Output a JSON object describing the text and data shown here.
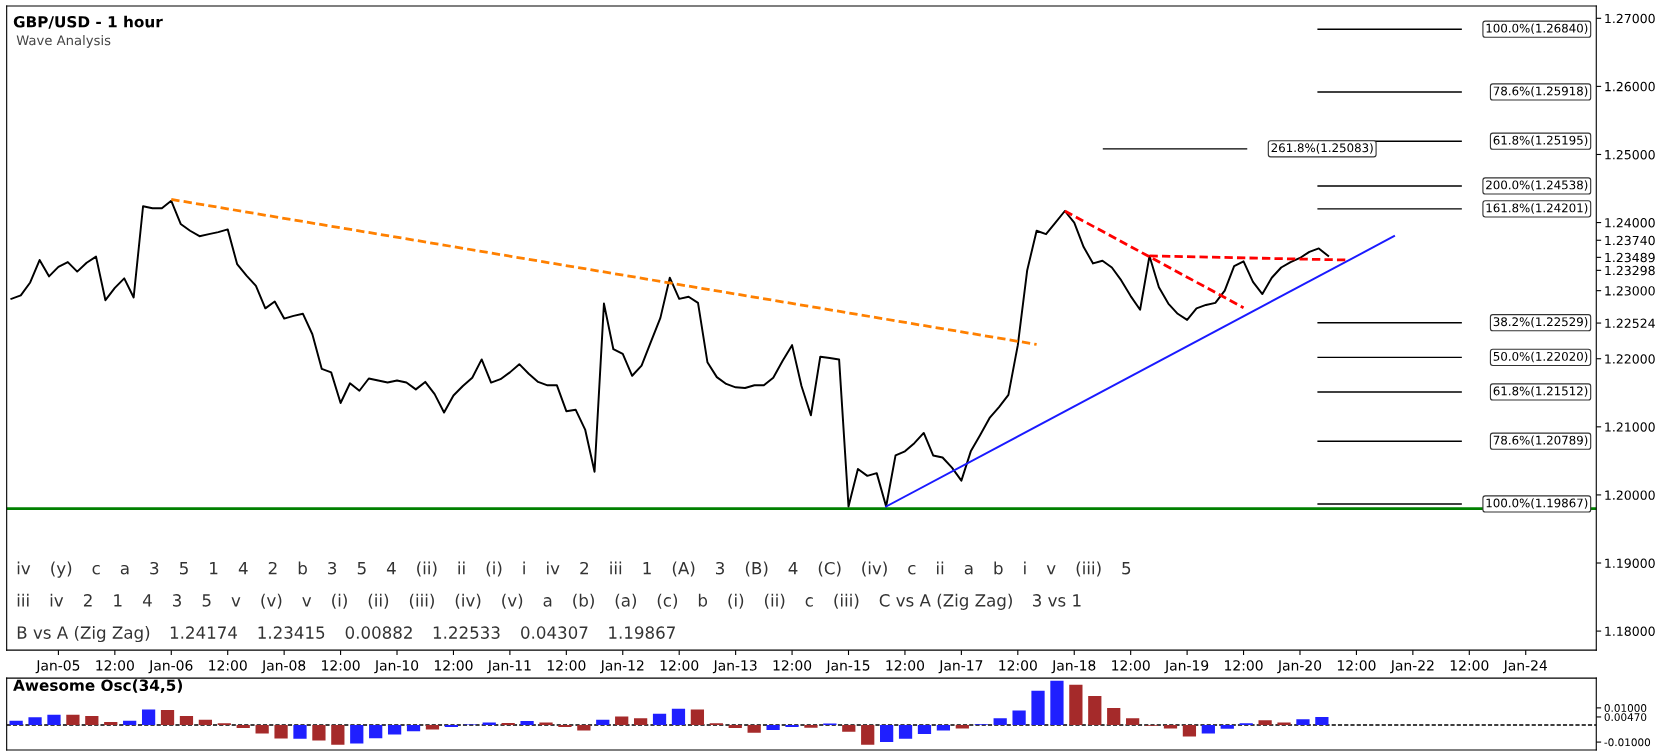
{
  "chart_data": [
    {
      "type": "line",
      "title": "GBP/USD - 1 hour",
      "subtitle": "Wave Analysis",
      "categories": [
        null,
        null,
        null,
        null,
        null,
        "Jan-05",
        null,
        null,
        null,
        null,
        null,
        "12:00",
        null,
        null,
        null,
        null,
        null,
        "Jan-06",
        null,
        null,
        null,
        null,
        null,
        "12:00",
        null,
        null,
        null,
        null,
        null,
        "Jan-08",
        null,
        null,
        null,
        null,
        null,
        "12:00",
        null,
        null,
        null,
        null,
        null,
        "Jan-10",
        null,
        null,
        null,
        null,
        null,
        "12:00",
        null,
        null,
        null,
        null,
        null,
        "Jan-11",
        null,
        null,
        null,
        null,
        null,
        "12:00",
        null,
        null,
        null,
        null,
        null,
        "Jan-12",
        null,
        null,
        null,
        null,
        null,
        "12:00",
        null,
        null,
        null,
        null,
        null,
        "Jan-13",
        null,
        null,
        null,
        null,
        null,
        "12:00",
        null,
        null,
        null,
        null,
        null,
        "Jan-15",
        null,
        null,
        null,
        null,
        null,
        "12:00",
        null,
        null,
        null,
        null,
        null,
        "Jan-17",
        null,
        null,
        null,
        null,
        null,
        "12:00",
        null,
        null,
        null,
        null,
        null,
        "Jan-18",
        null,
        null,
        null,
        null,
        null,
        "12:00",
        null,
        null,
        null,
        null,
        null,
        "Jan-19",
        null,
        null,
        null,
        null,
        null,
        "12:00",
        null,
        null,
        null,
        null,
        null,
        "Jan-20",
        null,
        null,
        null,
        null,
        null,
        "12:00",
        null,
        null,
        null,
        null,
        null,
        "Jan-22",
        null,
        null,
        null,
        null,
        null,
        "12:00",
        null,
        null,
        null,
        null,
        null,
        "Jan-24",
        null,
        null,
        null,
        null,
        null,
        null,
        null
      ],
      "ylim": [
        1.1772,
        1.2718
      ],
      "yticks": [
        {
          "value": 1.18,
          "label": "1.18000"
        },
        {
          "value": 1.19,
          "label": "1.19000"
        },
        {
          "value": 1.2,
          "label": "1.20000"
        },
        {
          "value": 1.21,
          "label": "1.21000"
        },
        {
          "value": 1.22,
          "label": "1.22000"
        },
        {
          "value": 1.22524,
          "label": "1.22524"
        },
        {
          "value": 1.23,
          "label": "1.23000"
        },
        {
          "value": 1.23298,
          "label": "1.23298"
        },
        {
          "value": 1.23489,
          "label": "1.23489"
        },
        {
          "value": 1.2374,
          "label": "1.23740"
        },
        {
          "value": 1.24,
          "label": "1.24000"
        },
        {
          "value": 1.25,
          "label": "1.25000"
        },
        {
          "value": 1.26,
          "label": "1.26000"
        },
        {
          "value": 1.27,
          "label": "1.27000"
        }
      ],
      "series": [
        {
          "color": "#000000",
          "line_style": "solid",
          "values": [
            1.2288,
            1.2293,
            1.2312,
            1.2345,
            1.2321,
            1.2335,
            1.2342,
            1.2328,
            1.2341,
            1.235,
            1.2286,
            1.2304,
            1.2318,
            1.229,
            1.2424,
            1.2421,
            1.2421,
            1.2432,
            1.2398,
            1.2388,
            1.238,
            1.2383,
            1.2386,
            1.239,
            1.2339,
            1.2322,
            1.2307,
            1.2274,
            1.2284,
            1.2259,
            1.2263,
            1.2266,
            1.2236,
            1.2185,
            1.218,
            1.2135,
            1.2164,
            1.2153,
            1.2171,
            1.2168,
            1.2165,
            1.2168,
            1.2165,
            1.2155,
            1.2166,
            1.2148,
            1.2121,
            1.2146,
            1.216,
            1.2172,
            1.2199,
            1.2165,
            1.217,
            1.218,
            1.2192,
            1.2178,
            1.2166,
            1.2161,
            1.2161,
            1.2123,
            1.2125,
            1.2096,
            1.2034,
            1.2281,
            1.2214,
            1.2207,
            1.2175,
            1.219,
            1.2225,
            1.226,
            1.2319,
            1.2288,
            1.2291,
            1.2282,
            1.2195,
            1.2173,
            1.2163,
            1.2158,
            1.2157,
            1.2161,
            1.2161,
            1.2172,
            1.2197,
            1.222,
            1.216,
            1.2117,
            1.2203,
            1.2201,
            1.2199,
            1.1983,
            1.2038,
            1.2028,
            1.2032,
            1.1983,
            1.2058,
            1.2064,
            1.2076,
            1.2091,
            1.2058,
            1.2055,
            1.204,
            1.2021,
            1.2064,
            1.2088,
            1.2113,
            1.2129,
            1.2147,
            1.222,
            1.233,
            1.2388,
            1.2383,
            1.24,
            1.2417,
            1.24,
            1.2364,
            1.234,
            1.2344,
            1.2334,
            1.2315,
            1.2292,
            1.2272,
            1.2351,
            1.2305,
            1.2281,
            1.2266,
            1.2257,
            1.2274,
            1.2279,
            1.2282,
            1.23,
            1.2336,
            1.2343,
            1.2313,
            1.2295,
            1.2319,
            1.2334,
            1.2342,
            1.2348,
            1.2357,
            1.2362,
            1.2351,
            null,
            null,
            null,
            null,
            null,
            null,
            null,
            null,
            null,
            null,
            null,
            null,
            null,
            null,
            null,
            null,
            null,
            null,
            null,
            null,
            null,
            null,
            null,
            null,
            null,
            null,
            null,
            null
          ]
        },
        {
          "color": "#1a1aff",
          "line_style": "solid",
          "values": [
            null,
            null,
            null,
            null,
            null,
            null,
            null,
            null,
            null,
            null,
            null,
            null,
            null,
            null,
            null,
            null,
            null,
            null,
            null,
            null,
            null,
            null,
            null,
            null,
            null,
            null,
            null,
            null,
            null,
            null,
            null,
            null,
            null,
            null,
            null,
            null,
            null,
            null,
            null,
            null,
            null,
            null,
            null,
            null,
            null,
            null,
            null,
            null,
            null,
            null,
            null,
            null,
            null,
            null,
            null,
            null,
            null,
            null,
            null,
            null,
            null,
            null,
            null,
            null,
            null,
            null,
            null,
            null,
            null,
            null,
            null,
            null,
            null,
            null,
            null,
            null,
            null,
            null,
            null,
            null,
            null,
            null,
            null,
            null,
            null,
            null,
            null,
            null,
            null,
            null,
            null,
            null,
            null,
            1.1983,
            null,
            null,
            null,
            null,
            null,
            null,
            null,
            null,
            null,
            null,
            null,
            null,
            null,
            null,
            null,
            null,
            null,
            null,
            null,
            null,
            null,
            null,
            null,
            null,
            null,
            null,
            null,
            null,
            null,
            null,
            null,
            null,
            null,
            null,
            null,
            null,
            null,
            null,
            null,
            null,
            null,
            null,
            null,
            null,
            null,
            null,
            null,
            null,
            null,
            null,
            null,
            null,
            null,
            1.238,
            null,
            null,
            null,
            null,
            null,
            null,
            null,
            null,
            null,
            null,
            null,
            null,
            null,
            null,
            null,
            null,
            null,
            null,
            null,
            null,
            null
          ]
        },
        {
          "color": "#ff8000",
          "line_style": "dashed",
          "values": [
            null,
            null,
            null,
            null,
            null,
            null,
            null,
            null,
            null,
            null,
            null,
            null,
            null,
            null,
            null,
            null,
            null,
            1.2434,
            null,
            null,
            null,
            null,
            null,
            null,
            null,
            null,
            null,
            null,
            null,
            null,
            null,
            null,
            null,
            null,
            null,
            null,
            null,
            null,
            null,
            null,
            null,
            null,
            null,
            null,
            null,
            null,
            null,
            null,
            null,
            null,
            null,
            null,
            null,
            null,
            null,
            null,
            null,
            null,
            null,
            null,
            null,
            null,
            null,
            null,
            null,
            null,
            null,
            null,
            null,
            null,
            null,
            null,
            null,
            null,
            null,
            null,
            null,
            null,
            null,
            null,
            null,
            null,
            null,
            null,
            null,
            null,
            null,
            null,
            null,
            null,
            null,
            null,
            null,
            null,
            null,
            null,
            null,
            null,
            null,
            null,
            null,
            null,
            null,
            null,
            null,
            null,
            null,
            null,
            null,
            1.2221,
            null,
            null,
            null,
            null,
            null,
            null,
            null,
            null,
            null,
            null,
            null,
            null,
            null,
            null,
            null,
            null,
            null,
            null,
            null,
            null,
            null,
            null,
            null,
            null,
            null,
            null,
            null,
            null,
            null,
            null,
            null,
            null,
            null,
            null,
            null,
            null,
            null,
            null,
            null,
            null,
            null,
            null,
            null,
            null,
            null,
            null,
            null,
            null,
            null,
            null,
            null,
            null,
            null,
            null,
            null,
            null,
            null,
            null,
            null
          ]
        },
        {
          "color": "#ff0000",
          "line_style": "dashed",
          "values": [
            null,
            null,
            null,
            null,
            null,
            null,
            null,
            null,
            null,
            null,
            null,
            null,
            null,
            null,
            null,
            null,
            null,
            null,
            null,
            null,
            null,
            null,
            null,
            null,
            null,
            null,
            null,
            null,
            null,
            null,
            null,
            null,
            null,
            null,
            null,
            null,
            null,
            null,
            null,
            null,
            null,
            null,
            null,
            null,
            null,
            null,
            null,
            null,
            null,
            null,
            null,
            null,
            null,
            null,
            null,
            null,
            null,
            null,
            null,
            null,
            null,
            null,
            null,
            null,
            null,
            null,
            null,
            null,
            null,
            null,
            null,
            null,
            null,
            null,
            null,
            null,
            null,
            null,
            null,
            null,
            null,
            null,
            null,
            null,
            null,
            null,
            null,
            null,
            null,
            null,
            null,
            null,
            null,
            null,
            null,
            null,
            null,
            null,
            null,
            null,
            null,
            null,
            null,
            null,
            null,
            null,
            null,
            null,
            null,
            null,
            null,
            null,
            1.2417,
            null,
            null,
            null,
            null,
            null,
            null,
            null,
            null,
            null,
            null,
            null,
            null,
            null,
            null,
            null,
            null,
            null,
            null,
            1.2275,
            null,
            null,
            null,
            null,
            null,
            null,
            null,
            null,
            null,
            null,
            null,
            null,
            null,
            null,
            null,
            null,
            null,
            null,
            null,
            null,
            null,
            null,
            null,
            null,
            null,
            null,
            null,
            null,
            null,
            null,
            null,
            null,
            null,
            null,
            null,
            null,
            null
          ]
        },
        {
          "color": "#ff0000",
          "line_style": "dashed",
          "values": [
            null,
            null,
            null,
            null,
            null,
            null,
            null,
            null,
            null,
            null,
            null,
            null,
            null,
            null,
            null,
            null,
            null,
            null,
            null,
            null,
            null,
            null,
            null,
            null,
            null,
            null,
            null,
            null,
            null,
            null,
            null,
            null,
            null,
            null,
            null,
            null,
            null,
            null,
            null,
            null,
            null,
            null,
            null,
            null,
            null,
            null,
            null,
            null,
            null,
            null,
            null,
            null,
            null,
            null,
            null,
            null,
            null,
            null,
            null,
            null,
            null,
            null,
            null,
            null,
            null,
            null,
            null,
            null,
            null,
            null,
            null,
            null,
            null,
            null,
            null,
            null,
            null,
            null,
            null,
            null,
            null,
            null,
            null,
            null,
            null,
            null,
            null,
            null,
            null,
            null,
            null,
            null,
            null,
            null,
            null,
            null,
            null,
            null,
            null,
            null,
            null,
            null,
            null,
            null,
            null,
            null,
            null,
            null,
            null,
            null,
            null,
            null,
            null,
            null,
            null,
            null,
            null,
            null,
            null,
            null,
            null,
            1.2351,
            null,
            null,
            null,
            null,
            null,
            null,
            null,
            null,
            null,
            null,
            null,
            null,
            null,
            null,
            null,
            null,
            null,
            null,
            null,
            null,
            1.2345,
            null,
            null,
            null,
            null,
            null,
            null,
            null,
            null,
            null,
            null,
            null,
            null,
            null,
            null,
            null,
            null,
            null,
            null,
            null,
            null,
            null,
            null,
            null,
            null,
            null,
            null
          ]
        }
      ],
      "ref_lines": [
        {
          "axis": "y",
          "value": 1.198,
          "color": "#008000",
          "line_style": "solid"
        },
        {
          "axis": "y",
          "value": 1.2684,
          "label": "100.0%(1.26840)",
          "color": "#000000",
          "line_style": "solid"
        },
        {
          "axis": "y",
          "value": 1.25918,
          "label": "78.6%(1.25918)",
          "color": "#000000",
          "line_style": "solid"
        },
        {
          "axis": "y",
          "value": 1.25195,
          "label": "61.8%(1.25195)",
          "color": "#000000",
          "line_style": "solid"
        },
        {
          "axis": "y",
          "value": 1.25083,
          "label": "261.8%(1.25083)",
          "color": "#000000",
          "line_style": "solid"
        },
        {
          "axis": "y",
          "value": 1.24538,
          "label": "200.0%(1.24538)",
          "color": "#000000",
          "line_style": "solid"
        },
        {
          "axis": "y",
          "value": 1.24201,
          "label": "161.8%(1.24201)",
          "color": "#000000",
          "line_style": "solid"
        },
        {
          "axis": "y",
          "value": 1.22529,
          "label": "38.2%(1.22529)",
          "color": "#000000",
          "line_style": "solid"
        },
        {
          "axis": "y",
          "value": 1.2202,
          "label": "50.0%(1.22020)",
          "color": "#000000",
          "line_style": "solid"
        },
        {
          "axis": "y",
          "value": 1.21512,
          "label": "61.8%(1.21512)",
          "color": "#000000",
          "line_style": "solid"
        },
        {
          "axis": "y",
          "value": 1.20789,
          "label": "78.6%(1.20789)",
          "color": "#000000",
          "line_style": "solid"
        },
        {
          "axis": "y",
          "value": 1.19867,
          "label": "100.0%(1.19867)",
          "color": "#000000",
          "line_style": "solid"
        }
      ],
      "annotations": [
        "iv",
        "(y)",
        "c",
        "a",
        "3",
        "5",
        "1",
        "4",
        "2",
        "b",
        "3",
        "5",
        "4",
        "(ii)",
        "ii",
        "(i)",
        "i",
        "iv",
        "2",
        "iii",
        "1",
        "(A)",
        "3",
        "(B)",
        "4",
        "(C)",
        "(iv)",
        "c",
        "ii",
        "a",
        "b",
        "i",
        "v",
        "(iii)",
        "5",
        "iii",
        "iv",
        "2",
        "1",
        "4",
        "3",
        "5",
        "v",
        "(v)",
        "v",
        "(i)",
        "(ii)",
        "(iii)",
        "(iv)",
        "(v)",
        "a",
        "(b)",
        "(a)",
        "(c)",
        "b",
        "(i)",
        "(ii)",
        "c",
        "(iii)",
        "C vs A (Zig Zag)",
        "3 vs 1",
        "B vs A (Zig Zag)",
        "1.24174",
        "1.23415",
        "0.00882",
        "1.22533",
        "0.04307",
        "1.19867"
      ]
    },
    {
      "type": "bar",
      "title": "Awesome Osc(34,5)",
      "tick_labels": "y",
      "categories": [
        null,
        null,
        null,
        null,
        null,
        null,
        null,
        null,
        null,
        null,
        null,
        null,
        null,
        null,
        null,
        null,
        null,
        null,
        null,
        null,
        null,
        null,
        null,
        null,
        null,
        null,
        null,
        null,
        null,
        null,
        null,
        null,
        null,
        null,
        null,
        null,
        null,
        null,
        null,
        null,
        null,
        null,
        null,
        null,
        null,
        null,
        null,
        null,
        null,
        null,
        null,
        null,
        null,
        null,
        null,
        null,
        null,
        null,
        null,
        null,
        null,
        null,
        null,
        null,
        null,
        null,
        null,
        null,
        null,
        null,
        null,
        null,
        null,
        null,
        null,
        null,
        null,
        null,
        null,
        null,
        null,
        null,
        null,
        null
      ],
      "ylim": [
        -0.0146,
        0.0274
      ],
      "yticks": [
        {
          "value": -0.01,
          "label": "-0.01000"
        },
        {
          "value": 0.0047,
          "label": "0.00470"
        },
        {
          "value": 0.01,
          "label": "0.01000"
        }
      ],
      "values": [
        0.0025,
        0.0045,
        0.006,
        0.006,
        0.0052,
        0.0017,
        0.0025,
        0.009,
        0.0088,
        0.0052,
        0.003,
        0.001,
        -0.0018,
        -0.005,
        -0.0079,
        -0.008,
        -0.009,
        -0.0115,
        -0.0108,
        -0.0077,
        -0.0055,
        -0.0036,
        -0.0026,
        -0.0012,
        0.0003,
        0.0015,
        0.0012,
        0.0024,
        0.0014,
        -0.0012,
        -0.0032,
        0.003,
        0.005,
        0.004,
        0.0065,
        0.0095,
        0.0091,
        0.001,
        -0.0018,
        -0.0045,
        -0.003,
        -0.0012,
        -0.0016,
        0.0008,
        -0.004,
        -0.0116,
        -0.01,
        -0.008,
        -0.0053,
        -0.0032,
        -0.002,
        0.0005,
        0.004,
        0.0085,
        0.02,
        0.0258,
        0.0235,
        0.017,
        0.01,
        0.004,
        -0.0005,
        -0.002,
        -0.0067,
        -0.005,
        -0.0022,
        0.001,
        0.0027,
        0.0015,
        0.0033,
        0.0047,
        null,
        null,
        null,
        null,
        null,
        null,
        null,
        null,
        null,
        null,
        null,
        null,
        null,
        null
      ],
      "colors": [
        "#1f1fff",
        "#1f1fff",
        "#1f1fff",
        "#a52a2a",
        "#a52a2a",
        "#a52a2a",
        "#1f1fff",
        "#1f1fff",
        "#a52a2a",
        "#a52a2a",
        "#a52a2a",
        "#a52a2a",
        "#a52a2a",
        "#a52a2a",
        "#a52a2a",
        "#1f1fff",
        "#a52a2a",
        "#a52a2a",
        "#1f1fff",
        "#1f1fff",
        "#1f1fff",
        "#1f1fff",
        "#a52a2a",
        "#1f1fff",
        "#1f1fff",
        "#1f1fff",
        "#a52a2a",
        "#1f1fff",
        "#a52a2a",
        "#a52a2a",
        "#a52a2a",
        "#1f1fff",
        "#a52a2a",
        "#a52a2a",
        "#1f1fff",
        "#1f1fff",
        "#a52a2a",
        "#a52a2a",
        "#a52a2a",
        "#a52a2a",
        "#1f1fff",
        "#1f1fff",
        "#a52a2a",
        "#1f1fff",
        "#a52a2a",
        "#a52a2a",
        "#1f1fff",
        "#1f1fff",
        "#1f1fff",
        "#1f1fff",
        "#a52a2a",
        "#1f1fff",
        "#1f1fff",
        "#1f1fff",
        "#1f1fff",
        "#1f1fff",
        "#a52a2a",
        "#a52a2a",
        "#a52a2a",
        "#a52a2a",
        "#a52a2a",
        "#a52a2a",
        "#a52a2a",
        "#1f1fff",
        "#1f1fff",
        "#1f1fff",
        "#a52a2a",
        "#a52a2a",
        "#1f1fff",
        "#1f1fff",
        "#1f1fff",
        "#1f1fff",
        "#1f1fff",
        "#1f1fff",
        "#1f1fff",
        "#1f1fff",
        "#1f1fff",
        "#1f1fff",
        "#1f1fff",
        "#1f1fff",
        "#1f1fff",
        "#1f1fff",
        "#1f1fff",
        "#1f1fff"
      ],
      "ref_lines": [
        {
          "axis": "y",
          "value": 0,
          "color": "#000000",
          "line_style": "dashed"
        }
      ]
    }
  ]
}
